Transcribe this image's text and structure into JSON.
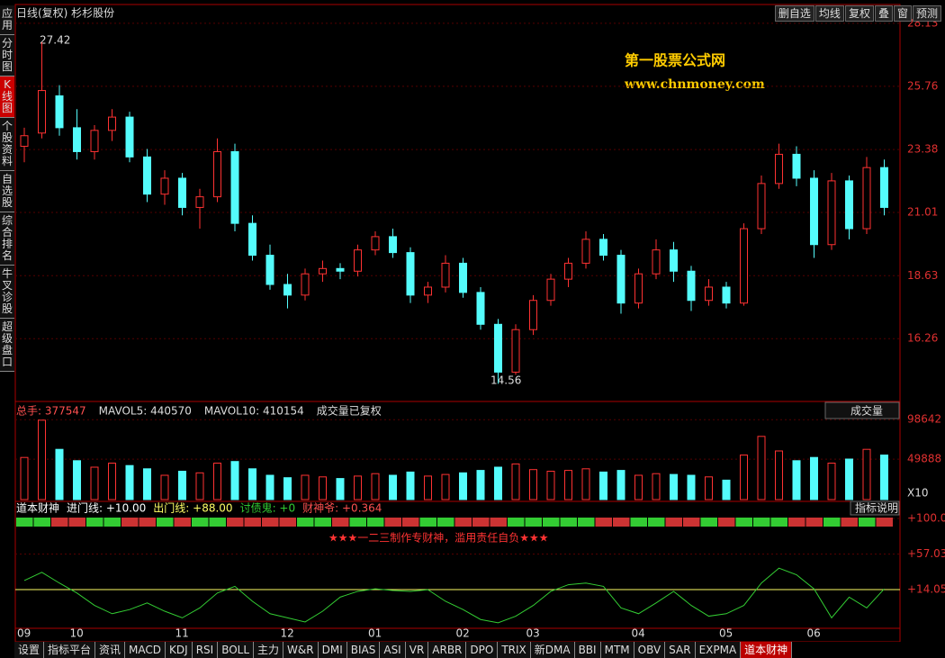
{
  "toolbar": {
    "title": "日线(复权) 杉杉股份",
    "buttons": [
      "删自选",
      "均线",
      "复权",
      "叠",
      "窗",
      "预测"
    ]
  },
  "sidebar": [
    "应用",
    "分时图",
    "K线图",
    "个股资料",
    "自选股",
    "综合排名",
    "牛叉诊股",
    "超级盘口"
  ],
  "watermark": {
    "name": "第一股票公式网",
    "url": "www.chnmoney.com"
  },
  "chart_data": [
    {
      "type": "candlestick",
      "categories": [
        "09",
        null,
        null,
        "10",
        null,
        null,
        null,
        null,
        null,
        "11",
        null,
        null,
        null,
        null,
        null,
        "12",
        null,
        null,
        null,
        null,
        "01",
        null,
        null,
        null,
        null,
        "02",
        null,
        null,
        null,
        "03",
        null,
        null,
        null,
        null,
        null,
        "04",
        null,
        null,
        null,
        null,
        "05",
        null,
        null,
        null,
        null,
        "06",
        null,
        null,
        null,
        null
      ],
      "candles": [
        [
          23.5,
          24.2,
          22.9,
          23.9
        ],
        [
          24.0,
          27.42,
          23.8,
          25.6
        ],
        [
          25.4,
          25.8,
          23.9,
          24.2
        ],
        [
          24.2,
          24.9,
          23.0,
          23.3
        ],
        [
          23.3,
          24.3,
          23.0,
          24.1
        ],
        [
          24.1,
          24.9,
          23.7,
          24.6
        ],
        [
          24.6,
          24.8,
          22.9,
          23.1
        ],
        [
          23.1,
          23.4,
          21.4,
          21.7
        ],
        [
          21.7,
          22.6,
          21.3,
          22.3
        ],
        [
          22.3,
          22.5,
          20.9,
          21.2
        ],
        [
          21.2,
          21.9,
          20.4,
          21.6
        ],
        [
          21.6,
          23.8,
          21.4,
          23.3
        ],
        [
          23.3,
          23.6,
          20.3,
          20.6
        ],
        [
          20.6,
          20.9,
          19.2,
          19.4
        ],
        [
          19.4,
          19.8,
          18.1,
          18.3
        ],
        [
          18.3,
          18.7,
          17.4,
          17.9
        ],
        [
          17.9,
          18.9,
          17.7,
          18.7
        ],
        [
          18.7,
          19.2,
          18.4,
          18.9
        ],
        [
          18.9,
          19.1,
          18.5,
          18.8
        ],
        [
          18.8,
          19.8,
          18.6,
          19.6
        ],
        [
          19.6,
          20.3,
          19.4,
          20.1
        ],
        [
          20.1,
          20.4,
          19.3,
          19.5
        ],
        [
          19.5,
          19.7,
          17.6,
          17.9
        ],
        [
          17.9,
          18.4,
          17.6,
          18.2
        ],
        [
          18.2,
          19.4,
          18.0,
          19.1
        ],
        [
          19.1,
          19.3,
          17.8,
          18.0
        ],
        [
          18.0,
          18.2,
          16.6,
          16.8
        ],
        [
          16.8,
          17.0,
          14.56,
          15.0
        ],
        [
          15.0,
          16.8,
          14.9,
          16.6
        ],
        [
          16.6,
          17.9,
          16.4,
          17.7
        ],
        [
          17.7,
          18.7,
          17.5,
          18.5
        ],
        [
          18.5,
          19.3,
          18.2,
          19.1
        ],
        [
          19.1,
          20.3,
          18.9,
          20.0
        ],
        [
          20.0,
          20.2,
          19.2,
          19.4
        ],
        [
          19.4,
          19.6,
          17.2,
          17.6
        ],
        [
          17.6,
          18.9,
          17.4,
          18.7
        ],
        [
          18.7,
          20.0,
          18.5,
          19.6
        ],
        [
          19.6,
          19.9,
          18.4,
          18.8
        ],
        [
          18.8,
          19.0,
          17.3,
          17.7
        ],
        [
          17.7,
          18.5,
          17.5,
          18.2
        ],
        [
          18.2,
          18.4,
          17.4,
          17.6
        ],
        [
          17.6,
          20.6,
          17.5,
          20.4
        ],
        [
          20.4,
          22.4,
          20.2,
          22.1
        ],
        [
          22.1,
          23.6,
          21.9,
          23.2
        ],
        [
          23.2,
          23.5,
          22.0,
          22.3
        ],
        [
          22.3,
          22.6,
          19.3,
          19.8
        ],
        [
          19.8,
          22.5,
          19.6,
          22.2
        ],
        [
          22.2,
          22.4,
          20.0,
          20.4
        ],
        [
          20.4,
          23.1,
          20.2,
          22.7
        ],
        [
          22.7,
          23.0,
          20.9,
          21.2
        ]
      ],
      "up_color": "#ff3232",
      "down_color": "#54fcfc",
      "ylim": [
        13.93,
        28.33
      ],
      "yticks": [
        28.13,
        25.76,
        23.38,
        21.01,
        18.63,
        16.26
      ],
      "grid": true
    },
    {
      "type": "bar",
      "legend": [
        "总手: 377547",
        "MAVOL5: 440570",
        "MAVOL10: 410154",
        "成交量已复权"
      ],
      "selector": "成交量",
      "values": [
        52000,
        98000,
        62000,
        48000,
        40000,
        45000,
        42000,
        38000,
        30000,
        35000,
        33000,
        45000,
        47000,
        38000,
        30000,
        27000,
        30000,
        28000,
        26000,
        29000,
        32000,
        30000,
        34000,
        29000,
        31000,
        33000,
        36000,
        40000,
        44000,
        37000,
        35000,
        36000,
        38000,
        34000,
        36000,
        30000,
        32000,
        31000,
        30000,
        28000,
        24000,
        55000,
        78000,
        60000,
        48000,
        52000,
        45000,
        50000,
        62000,
        55000
      ],
      "ylim": [
        0,
        100000
      ],
      "yticks": [
        98642,
        49888
      ],
      "unit": "X10"
    },
    {
      "type": "line",
      "legend": [
        "道本财神",
        "进门线: +10.00",
        "出门线: +88.00",
        "讨债鬼: +0",
        "财神爷: +0.364"
      ],
      "button": "指标说明",
      "banner": "★★★一二三制作专财神，滥用责任自负★★★",
      "color": "#33cc33",
      "values": [
        25,
        35,
        22,
        10,
        -5,
        -15,
        -10,
        -2,
        -12,
        -20,
        -8,
        10,
        18,
        0,
        -15,
        -20,
        -25,
        -12,
        5,
        12,
        15,
        13,
        12,
        14,
        0,
        -10,
        -22,
        -26,
        -18,
        -5,
        12,
        20,
        22,
        18,
        -8,
        -15,
        -2,
        12,
        -5,
        -18,
        -15,
        -5,
        22,
        40,
        32,
        15,
        -20,
        5,
        -8,
        15
      ],
      "ylim": [
        -34.8,
        106.5
      ],
      "yticks": [
        {
          "value": 100,
          "label": "+100.0"
        },
        {
          "value": 57.03,
          "label": "+57.03"
        },
        {
          "value": 14.05,
          "label": "+14.05"
        }
      ]
    }
  ],
  "tabs": [
    "设置",
    "指标平台",
    "资讯",
    "MACD",
    "KDJ",
    "RSI",
    "BOLL",
    "主力",
    "W&R",
    "DMI",
    "BIAS",
    "ASI",
    "VR",
    "ARBR",
    "DPO",
    "TRIX",
    "新DMA",
    "BBI",
    "MTM",
    "OBV",
    "SAR",
    "EXPMA",
    "道本财神"
  ]
}
